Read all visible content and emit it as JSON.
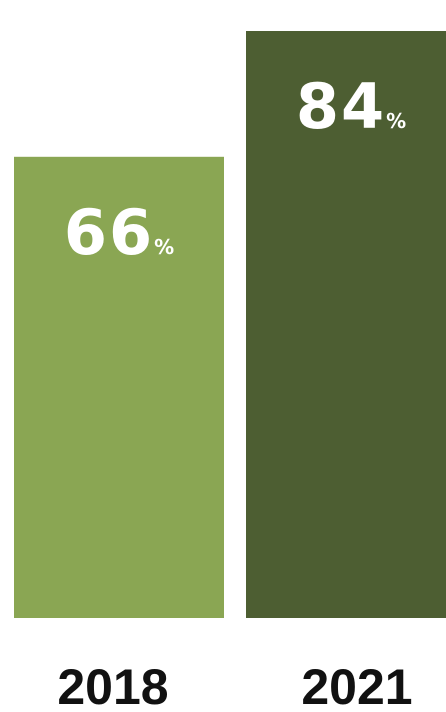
{
  "chart_data": {
    "type": "bar",
    "categories": [
      "2018",
      "2021"
    ],
    "values": [
      66,
      84
    ],
    "value_labels": [
      "66",
      "84"
    ],
    "unit": "%",
    "ylim": [
      0,
      87
    ],
    "grid": false,
    "legend": "none",
    "title": "",
    "xlabel": "",
    "ylabel": "",
    "bar_colors": [
      "#8aa653",
      "#4d5e32"
    ],
    "value_label_color": "#ffffff",
    "tick_label_color": "#111111"
  }
}
